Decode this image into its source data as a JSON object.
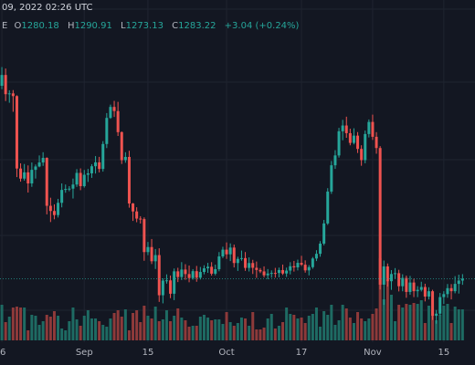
{
  "header": {
    "timestamp_text": "09, 2022 02:26 UTC"
  },
  "ohlc": {
    "prefix": "E",
    "open_label": "O",
    "open": "1280.18",
    "high_label": "H",
    "high": "1290.91",
    "low_label": "L",
    "low": "1273.13",
    "close_label": "C",
    "close": "1283.22",
    "change": "+3.04 (+0.24%)"
  },
  "colors": {
    "background": "#131722",
    "grid": "#1f2430",
    "up": "#26a69a",
    "down": "#ef5350",
    "up_volume": "#1e6b63",
    "down_volume": "#8e3a3a",
    "price_line": "#26a69a"
  },
  "chart_data": {
    "type": "candlestick",
    "x_tick_labels": [
      "6",
      "Sep",
      "15",
      "Oct",
      "17",
      "Nov",
      "15"
    ],
    "x_tick_indices": [
      0,
      22,
      39,
      60,
      80,
      99,
      118
    ],
    "price_range": [
      1170,
      1720
    ],
    "last_price_line": 1283.22,
    "grid": true,
    "candles": [
      [
        1604.5,
        1635.68,
        1598.79,
        1622.52
      ],
      [
        1622.52,
        1633.29,
        1579.11,
        1590.52
      ],
      [
        1590.52,
        1597.07,
        1576.29,
        1591.86
      ],
      [
        1591.86,
        1597.35,
        1561.21,
        1587.37
      ],
      [
        1587.37,
        1588.71,
        1452.47,
        1466.76
      ],
      [
        1466.76,
        1475.42,
        1444.91,
        1449.95
      ],
      [
        1449.95,
        1474.27,
        1446.61,
        1460.36
      ],
      [
        1460.36,
        1471.98,
        1426.73,
        1441.95
      ],
      [
        1441.95,
        1476.79,
        1436.26,
        1464.57
      ],
      [
        1464.57,
        1473.46,
        1450.02,
        1470.17
      ],
      [
        1470.17,
        1488.54,
        1468.86,
        1476.84
      ],
      [
        1476.84,
        1493.89,
        1471.17,
        1484.47
      ],
      [
        1484.47,
        1485.43,
        1390.4,
        1404.67
      ],
      [
        1404.67,
        1418.16,
        1377.61,
        1396.06
      ],
      [
        1396.06,
        1407.14,
        1382.24,
        1389.28
      ],
      [
        1389.28,
        1416.21,
        1385.19,
        1409.65
      ],
      [
        1409.65,
        1441.99,
        1402.09,
        1431.14
      ],
      [
        1431.14,
        1440.15,
        1426.41,
        1432.77
      ],
      [
        1432.77,
        1437.42,
        1428.87,
        1433.26
      ],
      [
        1433.26,
        1450.01,
        1416.82,
        1440.11
      ],
      [
        1440.11,
        1465.8,
        1436.22,
        1459.46
      ],
      [
        1459.46,
        1466.98,
        1430.72,
        1437.36
      ],
      [
        1437.36,
        1464.38,
        1434.98,
        1456.37
      ],
      [
        1456.37,
        1466.08,
        1444.43,
        1458.73
      ],
      [
        1458.73,
        1473.97,
        1451.19,
        1470.54
      ],
      [
        1470.54,
        1487.46,
        1458.41,
        1477.05
      ],
      [
        1477.05,
        1486.14,
        1460.32,
        1466.04
      ],
      [
        1466.04,
        1512.33,
        1461.59,
        1507.59
      ],
      [
        1507.59,
        1559.1,
        1500.81,
        1551.04
      ],
      [
        1551.04,
        1573.2,
        1549.53,
        1569.32
      ],
      [
        1569.32,
        1579.4,
        1552.59,
        1562.44
      ],
      [
        1562.44,
        1577.77,
        1520.94,
        1527.33
      ],
      [
        1527.33,
        1528.46,
        1474.3,
        1480.66
      ],
      [
        1480.66,
        1493.89,
        1476.37,
        1486.09
      ],
      [
        1486.09,
        1496.34,
        1401.54,
        1408.57
      ],
      [
        1408.57,
        1409.44,
        1379.52,
        1395.32
      ],
      [
        1395.32,
        1402.31,
        1377.31,
        1383.4
      ],
      [
        1383.4,
        1387.39,
        1375.13,
        1382.55
      ],
      [
        1382.55,
        1385.46,
        1313.13,
        1327.62
      ],
      [
        1327.62,
        1344.52,
        1322.48,
        1336.02
      ],
      [
        1336.02,
        1349.4,
        1307.71,
        1312.34
      ],
      [
        1312.34,
        1332.7,
        1299.51,
        1322.63
      ],
      [
        1322.63,
        1333.95,
        1244.67,
        1255.76
      ],
      [
        1255.76,
        1283.77,
        1242.25,
        1280.22
      ],
      [
        1280.22,
        1290.54,
        1275.08,
        1280.52
      ],
      [
        1280.52,
        1288.58,
        1250.92,
        1258.28
      ],
      [
        1258.28,
        1300.31,
        1247.62,
        1295.58
      ],
      [
        1295.58,
        1301.49,
        1277.68,
        1286.12
      ],
      [
        1286.12,
        1310.89,
        1281.01,
        1298.53
      ],
      [
        1298.53,
        1307.46,
        1281.51,
        1291.03
      ],
      [
        1291.03,
        1305.25,
        1277.35,
        1284.42
      ],
      [
        1284.42,
        1299.26,
        1281.63,
        1295.86
      ],
      [
        1295.86,
        1304.57,
        1278.2,
        1284.97
      ],
      [
        1284.97,
        1302.86,
        1281.97,
        1294.52
      ],
      [
        1294.52,
        1305.73,
        1290.55,
        1300.61
      ],
      [
        1300.61,
        1309.69,
        1293.04,
        1303.18
      ],
      [
        1303.18,
        1310.85,
        1288.37,
        1291.66
      ],
      [
        1291.66,
        1306.69,
        1288.87,
        1299.15
      ],
      [
        1299.15,
        1327.65,
        1295.62,
        1320.4
      ],
      [
        1320.4,
        1336.51,
        1317.57,
        1331.69
      ],
      [
        1331.69,
        1343.73,
        1316.25,
        1323.88
      ],
      [
        1323.88,
        1342.11,
        1312.63,
        1335.14
      ],
      [
        1335.14,
        1340.11,
        1302.1,
        1309.43
      ],
      [
        1309.43,
        1319.89,
        1296.26,
        1316.25
      ],
      [
        1316.25,
        1330.2,
        1313.22,
        1317.59
      ],
      [
        1317.59,
        1327.7,
        1296.38,
        1301.28
      ],
      [
        1301.28,
        1318.86,
        1295.36,
        1309.38
      ],
      [
        1309.38,
        1314.73,
        1291.13,
        1301.47
      ],
      [
        1301.47,
        1311.88,
        1284.65,
        1297.85
      ],
      [
        1297.85,
        1300.92,
        1292.67,
        1295.44
      ],
      [
        1295.44,
        1303.82,
        1285.45,
        1288.95
      ],
      [
        1288.95,
        1299.36,
        1282.38,
        1291.94
      ],
      [
        1291.94,
        1297.18,
        1285.03,
        1292.91
      ],
      [
        1292.91,
        1301.33,
        1285.08,
        1292.81
      ],
      [
        1292.81,
        1301.74,
        1285.47,
        1297.68
      ],
      [
        1297.68,
        1306.82,
        1289.56,
        1291.98
      ],
      [
        1291.98,
        1301.74,
        1286.24,
        1296.81
      ],
      [
        1296.81,
        1310.83,
        1290.44,
        1304.07
      ],
      [
        1304.07,
        1312.91,
        1295.15,
        1302.18
      ],
      [
        1302.18,
        1315.04,
        1297.08,
        1309.71
      ],
      [
        1309.71,
        1321.42,
        1304.38,
        1306.59
      ],
      [
        1306.59,
        1313.88,
        1293.37,
        1297.16
      ],
      [
        1297.16,
        1305.94,
        1288.81,
        1302.57
      ],
      [
        1302.57,
        1319.39,
        1299.86,
        1316.93
      ],
      [
        1316.93,
        1330.79,
        1312.65,
        1324.74
      ],
      [
        1324.74,
        1345.88,
        1319.88,
        1341.71
      ],
      [
        1341.71,
        1381.21,
        1338.82,
        1375.31
      ],
      [
        1375.31,
        1434.04,
        1372.87,
        1428.39
      ],
      [
        1428.39,
        1479.31,
        1424.55,
        1472.12
      ],
      [
        1472.12,
        1497.31,
        1466.12,
        1488.56
      ],
      [
        1488.56,
        1534.47,
        1484.92,
        1528.77
      ],
      [
        1528.77,
        1547.82,
        1513.78,
        1538.39
      ],
      [
        1538.39,
        1553.06,
        1517.93,
        1525.61
      ],
      [
        1525.61,
        1533.07,
        1505.4,
        1509.45
      ],
      [
        1509.45,
        1533.77,
        1506.95,
        1521.52
      ],
      [
        1521.52,
        1527.45,
        1492.6,
        1499.43
      ],
      [
        1499.43,
        1505.49,
        1471.34,
        1480.73
      ],
      [
        1480.73,
        1530.02,
        1475.5,
        1524.19
      ],
      [
        1524.19,
        1548.45,
        1518.51,
        1544.34
      ],
      [
        1544.34,
        1556.49,
        1514.36,
        1519.59
      ],
      [
        1519.59,
        1527.34,
        1491.4,
        1500.88
      ],
      [
        1500.88,
        1504.12,
        1265.42,
        1273.38
      ],
      [
        1273.38,
        1313.56,
        1239.79,
        1303.79
      ],
      [
        1303.79,
        1308.64,
        1270.15,
        1279.09
      ],
      [
        1279.09,
        1297.64,
        1264.74,
        1291.11
      ],
      [
        1291.11,
        1300.97,
        1283.49,
        1292.48
      ],
      [
        1292.48,
        1298.1,
        1262.09,
        1270.78
      ],
      [
        1270.78,
        1290.68,
        1262.33,
        1284.6
      ],
      [
        1284.6,
        1288.53,
        1251.56,
        1261.27
      ],
      [
        1261.27,
        1287.89,
        1256.49,
        1276.95
      ],
      [
        1276.95,
        1283.28,
        1252.67,
        1262.52
      ],
      [
        1262.52,
        1270.89,
        1252.62,
        1264.78
      ],
      [
        1264.78,
        1278.24,
        1262.04,
        1269.44
      ],
      [
        1269.44,
        1274.94,
        1245.48,
        1253.55
      ],
      [
        1253.55,
        1269.09,
        1248.79,
        1262.43
      ],
      [
        1262.43,
        1264.84,
        1214.53,
        1221.54
      ],
      [
        1221.54,
        1231.17,
        1208.45,
        1225.08
      ],
      [
        1225.08,
        1259.57,
        1222.49,
        1252.67
      ],
      [
        1252.67,
        1262.48,
        1241.12,
        1257.66
      ],
      [
        1257.66,
        1274.45,
        1251.55,
        1267.55
      ],
      [
        1267.55,
        1274.29,
        1248.86,
        1262.49
      ],
      [
        1262.49,
        1287.52,
        1258.98,
        1274.68
      ],
      [
        1274.68,
        1289.99,
        1258.55,
        1280.18
      ],
      [
        1280.18,
        1290.91,
        1273.13,
        1283.22
      ]
    ],
    "volumes": [
      39,
      20,
      26,
      36,
      37,
      36,
      36,
      11,
      28,
      27,
      17,
      21,
      28,
      26,
      32,
      27,
      13,
      11,
      21,
      36,
      23,
      16,
      27,
      33,
      24,
      24,
      21,
      17,
      15,
      24,
      30,
      33,
      26,
      34,
      11,
      30,
      33,
      20,
      38,
      27,
      24,
      37,
      21,
      23,
      33,
      21,
      27,
      35,
      25,
      22,
      15,
      16,
      16,
      26,
      28,
      25,
      22,
      23,
      23,
      18,
      31,
      20,
      16,
      19,
      25,
      24,
      16,
      31,
      12,
      12,
      14,
      24,
      29,
      13,
      16,
      20,
      36,
      29,
      28,
      24,
      25,
      19,
      27,
      29,
      36,
      15,
      32,
      28,
      39,
      17,
      22,
      39,
      35,
      25,
      19,
      31,
      24,
      21,
      24,
      29,
      35,
      90,
      45,
      65,
      50,
      21,
      39,
      36,
      40,
      39,
      41,
      40,
      44,
      19,
      38,
      32,
      22,
      28,
      38,
      40,
      19,
      37,
      34,
      34
    ]
  }
}
